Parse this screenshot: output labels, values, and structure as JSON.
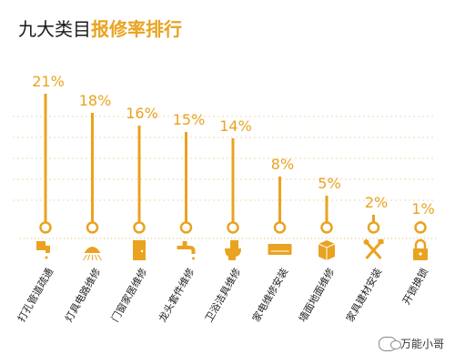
{
  "title": {
    "prefix": "九大类目",
    "highlight": "报修率排行"
  },
  "watermark": "万能小哥",
  "colors": {
    "accent": "#e9a320",
    "dots": "#e3b66a",
    "text": "#1f1f1f",
    "grid": "#f2d9b0"
  },
  "chart_data": {
    "type": "bar",
    "title": "九大类目报修率排行",
    "categories": [
      "打孔管道疏通",
      "灯具电路维修",
      "门窗家居维修",
      "龙头套件维修",
      "卫浴洁具维修",
      "家电维修安装",
      "墙面地面维修",
      "家具建材安装",
      "开锁换锁"
    ],
    "value_labels": [
      "21%",
      "18%",
      "16%",
      "15%",
      "14%",
      "8%",
      "5%",
      "2%",
      "1%"
    ],
    "icons": [
      "pipe-icon",
      "shower-icon",
      "door-icon",
      "faucet-icon",
      "toilet-icon",
      "air-conditioner-icon",
      "box-icon",
      "tools-icon",
      "padlock-icon"
    ],
    "series": [
      {
        "values": [
          21,
          18,
          16,
          15,
          14,
          8,
          5,
          2,
          1
        ]
      }
    ],
    "ylim": [
      0,
      21
    ],
    "grid": true
  }
}
